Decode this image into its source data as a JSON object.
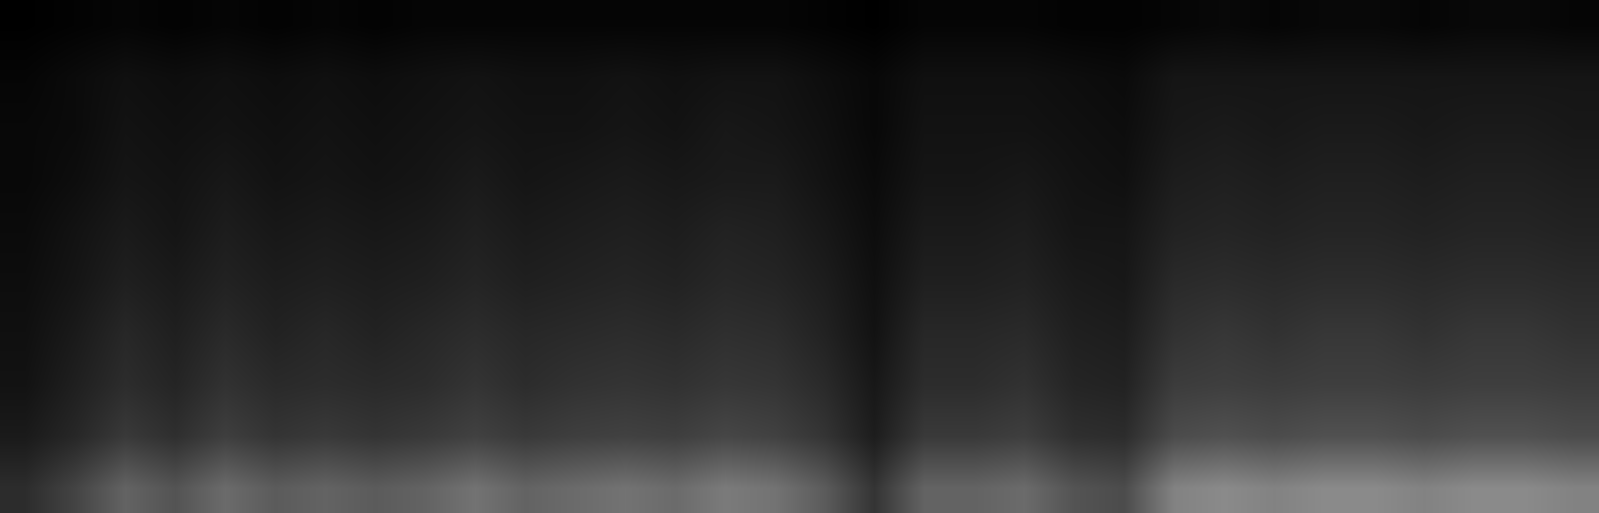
{
  "chart_data": {
    "type": "heatmap",
    "tick_labels": false,
    "z": [
      [
        18,
        27,
        39,
        33,
        42,
        36,
        39,
        36,
        39,
        45,
        39,
        42,
        45,
        42,
        48,
        45,
        36,
        21,
        39,
        39,
        42,
        33,
        30,
        51,
        54,
        51,
        54,
        54,
        51,
        54,
        54,
        51
      ],
      [
        11,
        16,
        23,
        19,
        25,
        21,
        23,
        21,
        23,
        26,
        23,
        25,
        26,
        25,
        28,
        26,
        21,
        12,
        23,
        23,
        25,
        19,
        18,
        30,
        32,
        30,
        32,
        32,
        30,
        32,
        32,
        30
      ],
      [
        8,
        13,
        18,
        15,
        20,
        17,
        18,
        17,
        18,
        21,
        18,
        20,
        21,
        20,
        22,
        21,
        17,
        10,
        18,
        18,
        20,
        15,
        14,
        24,
        25,
        24,
        25,
        25,
        24,
        25,
        25,
        24
      ],
      [
        7,
        11,
        16,
        13,
        17,
        14,
        16,
        14,
        16,
        18,
        16,
        17,
        18,
        17,
        19,
        18,
        14,
        8,
        16,
        16,
        17,
        13,
        12,
        20,
        22,
        20,
        22,
        22,
        20,
        22,
        22,
        20
      ],
      [
        6,
        9,
        13,
        11,
        14,
        12,
        13,
        12,
        13,
        15,
        13,
        14,
        15,
        14,
        16,
        15,
        12,
        7,
        13,
        13,
        14,
        11,
        10,
        17,
        18,
        17,
        18,
        18,
        17,
        18,
        18,
        17
      ],
      [
        5,
        8,
        11,
        9,
        12,
        10,
        11,
        10,
        11,
        13,
        11,
        12,
        13,
        12,
        14,
        13,
        10,
        6,
        11,
        11,
        12,
        9,
        9,
        14,
        15,
        14,
        15,
        15,
        14,
        15,
        15,
        14
      ],
      [
        4,
        6,
        9,
        8,
        10,
        8,
        9,
        8,
        9,
        11,
        9,
        10,
        11,
        10,
        11,
        11,
        8,
        5,
        9,
        9,
        10,
        8,
        7,
        12,
        13,
        12,
        13,
        13,
        12,
        13,
        13,
        12
      ],
      [
        4,
        5,
        8,
        7,
        8,
        7,
        8,
        7,
        8,
        9,
        8,
        8,
        9,
        8,
        10,
        9,
        7,
        4,
        8,
        8,
        8,
        7,
        6,
        10,
        11,
        10,
        11,
        11,
        10,
        11,
        11,
        10
      ],
      [
        3,
        5,
        7,
        6,
        7,
        6,
        7,
        6,
        7,
        8,
        7,
        7,
        8,
        7,
        8,
        8,
        6,
        4,
        7,
        7,
        7,
        6,
        5,
        9,
        9,
        9,
        9,
        9,
        9,
        9,
        9,
        9
      ],
      [
        1,
        2,
        3,
        2,
        3,
        2,
        3,
        2,
        3,
        3,
        3,
        3,
        3,
        3,
        3,
        3,
        2,
        1,
        3,
        3,
        3,
        2,
        2,
        3,
        4,
        3,
        4,
        4,
        3,
        4,
        4,
        3
      ]
    ]
  }
}
